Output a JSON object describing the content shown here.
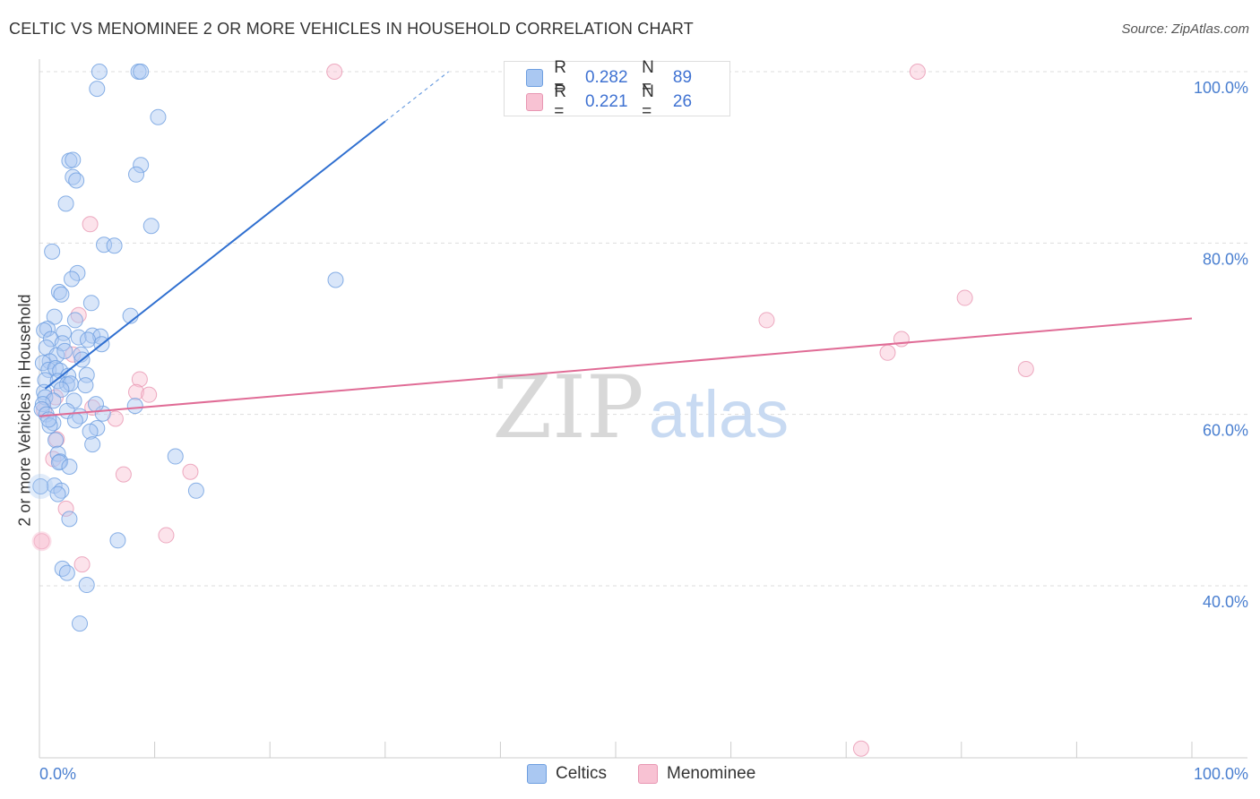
{
  "title": "CELTIC VS MENOMINEE 2 OR MORE VEHICLES IN HOUSEHOLD CORRELATION CHART",
  "source": "Source: ZipAtlas.com",
  "watermark": {
    "zip": "ZIP",
    "atlas": "atlas"
  },
  "legend": {
    "r_label": "R =",
    "n_label": "N =",
    "entries": [
      {
        "name": "Celtics",
        "r": "0.282",
        "n": "89",
        "color": "#6d9ee0"
      },
      {
        "name": "Menominee",
        "r": "0.221",
        "n": "26",
        "color": "#e896b2"
      }
    ]
  },
  "chart_data": {
    "type": "scatter",
    "title": "CELTIC VS MENOMINEE 2 OR MORE VEHICLES IN HOUSEHOLD CORRELATION CHART",
    "xlabel": "",
    "ylabel": "2 or more Vehicles in Household",
    "xlim": [
      0,
      100
    ],
    "ylim": [
      20,
      104
    ],
    "x_tick_labels": [
      "0.0%",
      "100.0%"
    ],
    "y_ticks": [
      {
        "value": 40,
        "label": "40.0%"
      },
      {
        "value": 60,
        "label": "60.0%"
      },
      {
        "value": 80,
        "label": "80.0%"
      },
      {
        "value": 100,
        "label": "100.0%"
      }
    ],
    "grid": true,
    "series": [
      {
        "name": "Celtics",
        "color": "#6d9ee0",
        "fill": "#aac8f2",
        "trend": {
          "x0": 0.5,
          "y0": 63.0,
          "x1": 30.0,
          "y1": 94.2,
          "dash_to_x": 35.5,
          "dash_to_y": 100.0
        },
        "points": [
          {
            "x": 5.2,
            "y": 100
          },
          {
            "x": 8.6,
            "y": 100
          },
          {
            "x": 8.8,
            "y": 100
          },
          {
            "x": 5.0,
            "y": 98
          },
          {
            "x": 10.3,
            "y": 94.7
          },
          {
            "x": 2.6,
            "y": 89.6
          },
          {
            "x": 2.9,
            "y": 89.7
          },
          {
            "x": 8.8,
            "y": 89.1
          },
          {
            "x": 8.4,
            "y": 88.0
          },
          {
            "x": 2.9,
            "y": 87.7
          },
          {
            "x": 3.2,
            "y": 87.3
          },
          {
            "x": 2.3,
            "y": 84.6
          },
          {
            "x": 9.7,
            "y": 82.0
          },
          {
            "x": 5.6,
            "y": 79.8
          },
          {
            "x": 6.5,
            "y": 79.7
          },
          {
            "x": 1.1,
            "y": 79.0
          },
          {
            "x": 3.3,
            "y": 76.5
          },
          {
            "x": 2.8,
            "y": 75.8
          },
          {
            "x": 25.7,
            "y": 75.7
          },
          {
            "x": 1.7,
            "y": 74.3
          },
          {
            "x": 1.9,
            "y": 74.0
          },
          {
            "x": 4.5,
            "y": 73.0
          },
          {
            "x": 7.9,
            "y": 71.5
          },
          {
            "x": 1.3,
            "y": 71.4
          },
          {
            "x": 3.1,
            "y": 71.0
          },
          {
            "x": 0.7,
            "y": 70.0
          },
          {
            "x": 0.4,
            "y": 69.8
          },
          {
            "x": 2.1,
            "y": 69.5
          },
          {
            "x": 3.4,
            "y": 69.0
          },
          {
            "x": 4.6,
            "y": 69.2
          },
          {
            "x": 5.3,
            "y": 69.1
          },
          {
            "x": 1.0,
            "y": 68.8
          },
          {
            "x": 2.0,
            "y": 68.3
          },
          {
            "x": 4.2,
            "y": 68.7
          },
          {
            "x": 5.4,
            "y": 68.2
          },
          {
            "x": 0.6,
            "y": 67.8
          },
          {
            "x": 3.6,
            "y": 67.0
          },
          {
            "x": 1.5,
            "y": 66.9
          },
          {
            "x": 0.9,
            "y": 66.2
          },
          {
            "x": 3.7,
            "y": 66.4
          },
          {
            "x": 0.3,
            "y": 66.0
          },
          {
            "x": 0.8,
            "y": 65.2
          },
          {
            "x": 1.4,
            "y": 65.4
          },
          {
            "x": 1.8,
            "y": 65.1
          },
          {
            "x": 2.5,
            "y": 64.5
          },
          {
            "x": 4.1,
            "y": 64.6
          },
          {
            "x": 0.5,
            "y": 64.0
          },
          {
            "x": 1.6,
            "y": 63.9
          },
          {
            "x": 2.4,
            "y": 63.5
          },
          {
            "x": 2.7,
            "y": 63.6
          },
          {
            "x": 4.0,
            "y": 63.4
          },
          {
            "x": 0.4,
            "y": 62.6
          },
          {
            "x": 1.9,
            "y": 62.9
          },
          {
            "x": 0.5,
            "y": 62.0
          },
          {
            "x": 1.2,
            "y": 61.6
          },
          {
            "x": 3.0,
            "y": 61.6
          },
          {
            "x": 8.3,
            "y": 61.0
          },
          {
            "x": 0.3,
            "y": 61.2
          },
          {
            "x": 0.2,
            "y": 60.6
          },
          {
            "x": 0.6,
            "y": 60.0
          },
          {
            "x": 2.4,
            "y": 60.4
          },
          {
            "x": 3.5,
            "y": 59.8
          },
          {
            "x": 5.5,
            "y": 60.1
          },
          {
            "x": 3.1,
            "y": 59.3
          },
          {
            "x": 1.2,
            "y": 59.0
          },
          {
            "x": 0.9,
            "y": 58.7
          },
          {
            "x": 5.0,
            "y": 58.4
          },
          {
            "x": 4.4,
            "y": 58.0
          },
          {
            "x": 1.4,
            "y": 57.0
          },
          {
            "x": 4.6,
            "y": 56.5
          },
          {
            "x": 1.6,
            "y": 55.4
          },
          {
            "x": 11.8,
            "y": 55.1
          },
          {
            "x": 1.8,
            "y": 54.5
          },
          {
            "x": 1.7,
            "y": 54.4
          },
          {
            "x": 2.6,
            "y": 53.9
          },
          {
            "x": 1.3,
            "y": 51.7
          },
          {
            "x": 1.9,
            "y": 51.1
          },
          {
            "x": 1.6,
            "y": 50.7
          },
          {
            "x": 13.6,
            "y": 51.1
          },
          {
            "x": 0.1,
            "y": 51.6
          },
          {
            "x": 2.6,
            "y": 47.8
          },
          {
            "x": 6.8,
            "y": 45.3
          },
          {
            "x": 2.0,
            "y": 42.0
          },
          {
            "x": 2.4,
            "y": 41.5
          },
          {
            "x": 4.1,
            "y": 40.1
          },
          {
            "x": 3.5,
            "y": 35.6
          },
          {
            "x": 4.9,
            "y": 61.2
          },
          {
            "x": 2.2,
            "y": 67.4
          },
          {
            "x": 0.8,
            "y": 59.4
          }
        ]
      },
      {
        "name": "Menominee",
        "color": "#e896b2",
        "fill": "#f8c2d3",
        "trend": {
          "x0": 0,
          "y0": 59.8,
          "x1": 100,
          "y1": 71.2
        },
        "points": [
          {
            "x": 25.6,
            "y": 100
          },
          {
            "x": 76.2,
            "y": 100
          },
          {
            "x": 4.4,
            "y": 82.2
          },
          {
            "x": 80.3,
            "y": 73.6
          },
          {
            "x": 3.4,
            "y": 71.6
          },
          {
            "x": 63.1,
            "y": 71.0
          },
          {
            "x": 74.8,
            "y": 68.8
          },
          {
            "x": 73.6,
            "y": 67.2
          },
          {
            "x": 85.6,
            "y": 65.3
          },
          {
            "x": 2.9,
            "y": 67.0
          },
          {
            "x": 8.7,
            "y": 64.1
          },
          {
            "x": 8.4,
            "y": 62.6
          },
          {
            "x": 9.5,
            "y": 62.3
          },
          {
            "x": 4.6,
            "y": 60.8
          },
          {
            "x": 6.6,
            "y": 59.5
          },
          {
            "x": 0.4,
            "y": 60.5
          },
          {
            "x": 1.5,
            "y": 57.1
          },
          {
            "x": 1.2,
            "y": 54.8
          },
          {
            "x": 13.1,
            "y": 53.3
          },
          {
            "x": 7.3,
            "y": 53.0
          },
          {
            "x": 2.3,
            "y": 49.0
          },
          {
            "x": 11.0,
            "y": 45.9
          },
          {
            "x": 0.2,
            "y": 45.2
          },
          {
            "x": 3.7,
            "y": 42.5
          },
          {
            "x": 71.3,
            "y": 21.0
          },
          {
            "x": 1.4,
            "y": 62.0
          }
        ]
      }
    ]
  }
}
